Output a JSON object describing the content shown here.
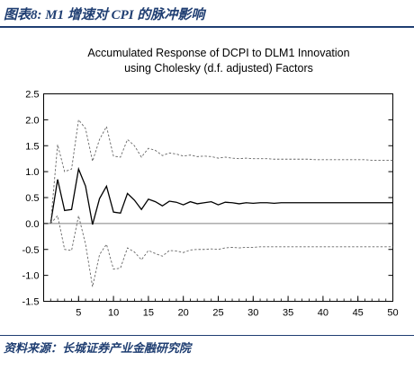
{
  "caption": "图表8:  M1 增速对 CPI 的脉冲影响",
  "source": "资料来源：长城证券产业金融研究院",
  "chart_data": {
    "type": "line",
    "title_lines": [
      "Accumulated Response of DCPI to DLM1 Innovation",
      "using Cholesky (d.f. adjusted) Factors"
    ],
    "xlabel": "",
    "ylabel": "",
    "xlim": [
      0,
      50
    ],
    "ylim": [
      -1.5,
      2.5
    ],
    "x_ticks": [
      "5",
      "10",
      "15",
      "20",
      "25",
      "30",
      "35",
      "40",
      "45",
      "50"
    ],
    "y_ticks": [
      "2.5",
      "2.0",
      "1.5",
      "1.0",
      "0.5",
      "0.0",
      "-0.5",
      "-1.0",
      "-1.5"
    ],
    "x": [
      1,
      2,
      3,
      4,
      5,
      6,
      7,
      8,
      9,
      10,
      11,
      12,
      13,
      14,
      15,
      16,
      17,
      18,
      19,
      20,
      21,
      22,
      23,
      24,
      25,
      26,
      27,
      28,
      29,
      30,
      31,
      32,
      33,
      34,
      35,
      36,
      37,
      38,
      39,
      40,
      41,
      42,
      43,
      44,
      45,
      46,
      47,
      48,
      49,
      50
    ],
    "series": [
      {
        "style": "solid",
        "color": "#000000",
        "values": [
          0.0,
          0.85,
          0.25,
          0.27,
          1.05,
          0.72,
          -0.02,
          0.48,
          0.72,
          0.22,
          0.2,
          0.58,
          0.45,
          0.27,
          0.47,
          0.42,
          0.34,
          0.43,
          0.41,
          0.36,
          0.42,
          0.38,
          0.4,
          0.42,
          0.36,
          0.41,
          0.4,
          0.38,
          0.4,
          0.39,
          0.4,
          0.4,
          0.39,
          0.4,
          0.4,
          0.4,
          0.4,
          0.4,
          0.4,
          0.4,
          0.4,
          0.4,
          0.4,
          0.4,
          0.4,
          0.4,
          0.4,
          0.4,
          0.4,
          0.4
        ]
      },
      {
        "style": "dashed",
        "color": "#666666",
        "values": [
          0.0,
          1.52,
          1.0,
          1.05,
          2.0,
          1.83,
          1.2,
          1.62,
          1.87,
          1.3,
          1.28,
          1.62,
          1.5,
          1.28,
          1.45,
          1.41,
          1.31,
          1.36,
          1.34,
          1.3,
          1.32,
          1.29,
          1.3,
          1.29,
          1.26,
          1.28,
          1.26,
          1.25,
          1.26,
          1.25,
          1.25,
          1.25,
          1.24,
          1.24,
          1.24,
          1.24,
          1.24,
          1.24,
          1.23,
          1.23,
          1.23,
          1.23,
          1.23,
          1.23,
          1.23,
          1.23,
          1.22,
          1.22,
          1.22,
          1.22
        ]
      },
      {
        "style": "dashed",
        "color": "#666666",
        "values": [
          0.0,
          0.15,
          -0.5,
          -0.52,
          0.15,
          -0.4,
          -1.22,
          -0.6,
          -0.4,
          -0.88,
          -0.86,
          -0.47,
          -0.55,
          -0.7,
          -0.52,
          -0.58,
          -0.63,
          -0.52,
          -0.53,
          -0.56,
          -0.51,
          -0.5,
          -0.5,
          -0.49,
          -0.5,
          -0.47,
          -0.46,
          -0.47,
          -0.46,
          -0.46,
          -0.45,
          -0.45,
          -0.45,
          -0.45,
          -0.45,
          -0.45,
          -0.45,
          -0.45,
          -0.45,
          -0.45,
          -0.45,
          -0.45,
          -0.45,
          -0.45,
          -0.45,
          -0.45,
          -0.45,
          -0.45,
          -0.45,
          -0.45
        ]
      }
    ],
    "reference_line": 0.0,
    "grid": false,
    "legend": "none"
  }
}
